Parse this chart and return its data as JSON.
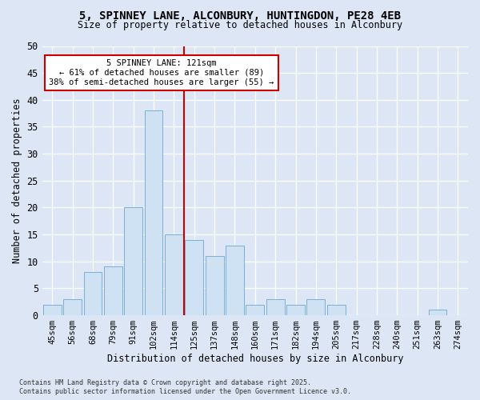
{
  "title_line1": "5, SPINNEY LANE, ALCONBURY, HUNTINGDON, PE28 4EB",
  "title_line2": "Size of property relative to detached houses in Alconbury",
  "xlabel": "Distribution of detached houses by size in Alconbury",
  "ylabel": "Number of detached properties",
  "categories": [
    "45sqm",
    "56sqm",
    "68sqm",
    "79sqm",
    "91sqm",
    "102sqm",
    "114sqm",
    "125sqm",
    "137sqm",
    "148sqm",
    "160sqm",
    "171sqm",
    "182sqm",
    "194sqm",
    "205sqm",
    "217sqm",
    "228sqm",
    "240sqm",
    "251sqm",
    "263sqm",
    "274sqm"
  ],
  "values": [
    2,
    3,
    8,
    9,
    20,
    38,
    15,
    14,
    11,
    13,
    2,
    3,
    2,
    3,
    2,
    0,
    0,
    0,
    0,
    1,
    0
  ],
  "bar_color": "#cfe2f3",
  "bar_edge_color": "#7bafd4",
  "vline_color": "#cc0000",
  "annotation_text": "5 SPINNEY LANE: 121sqm\n← 61% of detached houses are smaller (89)\n38% of semi-detached houses are larger (55) →",
  "annotation_box_facecolor": "#ffffff",
  "annotation_box_edgecolor": "#cc0000",
  "ylim": [
    0,
    50
  ],
  "yticks": [
    0,
    5,
    10,
    15,
    20,
    25,
    30,
    35,
    40,
    45,
    50
  ],
  "background_color": "#dce6f5",
  "grid_color": "#ffffff",
  "footer_line1": "Contains HM Land Registry data © Crown copyright and database right 2025.",
  "footer_line2": "Contains public sector information licensed under the Open Government Licence v3.0."
}
